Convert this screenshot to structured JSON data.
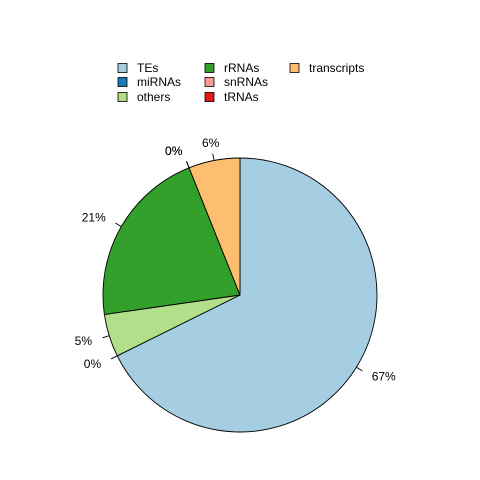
{
  "chart_data": {
    "type": "pie",
    "title": "",
    "start": "12 o'clock",
    "direction": "clockwise",
    "legend_placement": "top",
    "slices": [
      {
        "label": "TEs",
        "value": 67,
        "display": "67%",
        "color": "#A6CEE3"
      },
      {
        "label": "miRNAs",
        "value": 0,
        "display": "0%",
        "color": "#1F78B4"
      },
      {
        "label": "others",
        "value": 5,
        "display": "5%",
        "color": "#B2DF8A"
      },
      {
        "label": "rRNAs",
        "value": 21,
        "display": "21%",
        "color": "#33A02C"
      },
      {
        "label": "snRNAs",
        "value": 0,
        "display": "0%",
        "color": "#FB9A99"
      },
      {
        "label": "tRNAs",
        "value": 0,
        "display": "0%",
        "color": "#E31A1C"
      },
      {
        "label": "transcripts",
        "value": 6,
        "display": "6%",
        "color": "#FDBF6F"
      }
    ],
    "legend_order": [
      "TEs",
      "miRNAs",
      "others",
      "rRNAs",
      "snRNAs",
      "tRNAs",
      "transcripts"
    ]
  }
}
